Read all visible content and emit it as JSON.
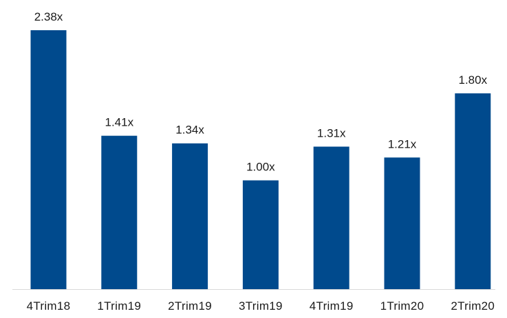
{
  "chart_data": {
    "type": "bar",
    "categories": [
      "4Trim18",
      "1Trim19",
      "2Trim19",
      "3Trim19",
      "4Trim19",
      "1Trim20",
      "2Trim20"
    ],
    "values": [
      2.38,
      1.41,
      1.34,
      1.0,
      1.31,
      1.21,
      1.8
    ],
    "data_labels": [
      "2.38x",
      "1.41x",
      "1.34x",
      "1.00x",
      "1.31x",
      "1.21x",
      "1.80x"
    ],
    "title": "",
    "xlabel": "",
    "ylabel": "",
    "ylim": [
      0,
      2.38
    ],
    "grid": false,
    "legend": "none",
    "bar_color": "#004A8D",
    "axis_color": "#D9D9D9"
  }
}
